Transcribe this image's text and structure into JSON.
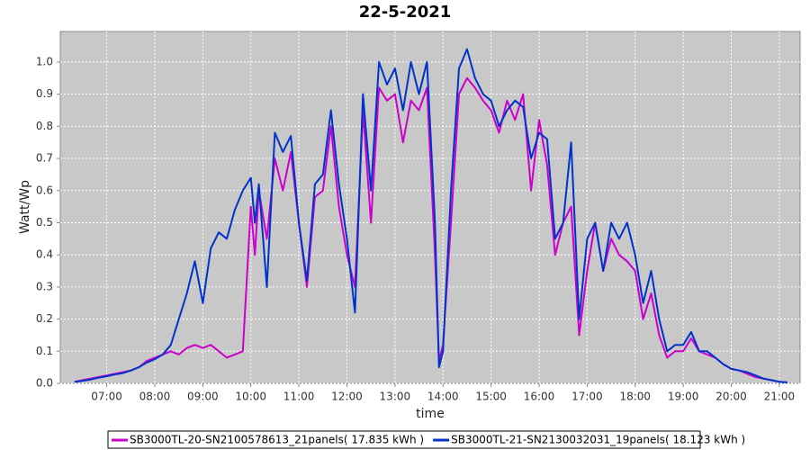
{
  "chart_data": {
    "type": "line",
    "title": "22-5-2021",
    "x_label": "time",
    "y_label": "Watt/Wp",
    "x": [
      "06:20",
      "06:30",
      "06:40",
      "06:50",
      "07:00",
      "07:10",
      "07:20",
      "07:30",
      "07:40",
      "07:50",
      "08:00",
      "08:10",
      "08:20",
      "08:30",
      "08:40",
      "08:50",
      "09:00",
      "09:10",
      "09:20",
      "09:30",
      "09:40",
      "09:50",
      "10:00",
      "10:05",
      "10:10",
      "10:20",
      "10:30",
      "10:40",
      "10:50",
      "11:00",
      "11:10",
      "11:20",
      "11:30",
      "11:40",
      "11:50",
      "12:00",
      "12:10",
      "12:20",
      "12:30",
      "12:40",
      "12:50",
      "13:00",
      "13:10",
      "13:20",
      "13:30",
      "13:40",
      "13:50",
      "13:55",
      "14:00",
      "14:10",
      "14:20",
      "14:30",
      "14:40",
      "14:50",
      "15:00",
      "15:10",
      "15:20",
      "15:30",
      "15:40",
      "15:50",
      "16:00",
      "16:10",
      "16:20",
      "16:30",
      "16:40",
      "16:50",
      "17:00",
      "17:10",
      "17:20",
      "17:30",
      "17:40",
      "17:50",
      "18:00",
      "18:10",
      "18:20",
      "18:30",
      "18:40",
      "18:50",
      "19:00",
      "19:10",
      "19:20",
      "19:30",
      "19:40",
      "19:50",
      "20:00",
      "20:10",
      "20:20",
      "20:30",
      "20:40",
      "20:50",
      "21:00",
      "21:10"
    ],
    "series": [
      {
        "name": "SB3000TL-20-SN2100578613_21panels( 17.835 kWh )",
        "color": "#cc00cc",
        "values": [
          0.005,
          0.01,
          0.015,
          0.02,
          0.025,
          0.03,
          0.035,
          0.04,
          0.05,
          0.07,
          0.08,
          0.09,
          0.1,
          0.09,
          0.11,
          0.12,
          0.11,
          0.12,
          0.1,
          0.08,
          0.09,
          0.1,
          0.55,
          0.4,
          0.6,
          0.45,
          0.7,
          0.6,
          0.72,
          0.5,
          0.3,
          0.58,
          0.6,
          0.8,
          0.55,
          0.4,
          0.3,
          0.85,
          0.5,
          0.92,
          0.88,
          0.9,
          0.75,
          0.88,
          0.85,
          0.92,
          0.4,
          0.07,
          0.12,
          0.5,
          0.9,
          0.95,
          0.92,
          0.88,
          0.85,
          0.78,
          0.88,
          0.82,
          0.9,
          0.6,
          0.82,
          0.68,
          0.4,
          0.5,
          0.55,
          0.15,
          0.35,
          0.5,
          0.35,
          0.45,
          0.4,
          0.38,
          0.35,
          0.2,
          0.28,
          0.15,
          0.08,
          0.1,
          0.1,
          0.14,
          0.1,
          0.09,
          0.08,
          0.06,
          0.045,
          0.04,
          0.03,
          0.02,
          0.015,
          0.01,
          0.005,
          0.003
        ]
      },
      {
        "name": "SB3000TL-21-SN2130032031_19panels( 18.123 kWh )",
        "color": "#0033cc",
        "values": [
          0.005,
          0.008,
          0.012,
          0.018,
          0.022,
          0.028,
          0.032,
          0.04,
          0.05,
          0.065,
          0.075,
          0.09,
          0.12,
          0.2,
          0.28,
          0.38,
          0.25,
          0.42,
          0.47,
          0.45,
          0.54,
          0.6,
          0.64,
          0.5,
          0.62,
          0.3,
          0.78,
          0.72,
          0.77,
          0.5,
          0.32,
          0.62,
          0.65,
          0.85,
          0.62,
          0.45,
          0.22,
          0.9,
          0.6,
          1.0,
          0.93,
          0.98,
          0.85,
          1.0,
          0.9,
          1.0,
          0.5,
          0.05,
          0.1,
          0.6,
          0.98,
          1.04,
          0.95,
          0.9,
          0.88,
          0.8,
          0.85,
          0.88,
          0.86,
          0.7,
          0.78,
          0.76,
          0.45,
          0.5,
          0.75,
          0.2,
          0.45,
          0.5,
          0.35,
          0.5,
          0.45,
          0.5,
          0.4,
          0.25,
          0.35,
          0.2,
          0.1,
          0.12,
          0.12,
          0.16,
          0.1,
          0.1,
          0.08,
          0.06,
          0.045,
          0.04,
          0.035,
          0.025,
          0.015,
          0.01,
          0.005,
          0.003
        ]
      }
    ],
    "xlim": [
      "06:02",
      "21:26"
    ],
    "xticks": [
      "07:00",
      "08:00",
      "09:00",
      "10:00",
      "11:00",
      "12:00",
      "13:00",
      "14:00",
      "15:00",
      "16:00",
      "17:00",
      "18:00",
      "19:00",
      "20:00",
      "21:00"
    ],
    "ylim": [
      0,
      1.095
    ],
    "yticks": [
      {
        "value": 0,
        "label": "0.0"
      },
      0.1,
      0.2,
      0.3,
      0.4,
      0.5,
      0.6,
      0.7,
      0.8,
      0.9,
      {
        "value": 1,
        "label": "1.0"
      }
    ],
    "grid": true,
    "legend": "bottom"
  }
}
